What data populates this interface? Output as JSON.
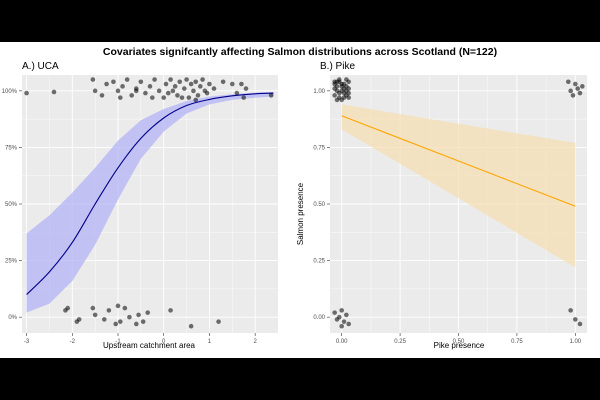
{
  "figure": {
    "title": "Covariates signifcantly affecting Salmon distributions across Scotland (N=122)"
  },
  "colors": {
    "panel_bg": "#ebebeb",
    "grid": "#ffffff",
    "points": "#000000",
    "uca_line": "#00008b",
    "uca_band": "#b3b3f5",
    "pike_line": "#ffa500",
    "pike_band": "#f5dfb3"
  },
  "chart_data": [
    {
      "type": "scatter",
      "panel_title": "A.) UCA",
      "xlabel": "Upstream catchment area",
      "ylabel": "",
      "xlim": [
        -3.1,
        2.5
      ],
      "ylim": [
        -0.07,
        1.07
      ],
      "xticks": [
        -3,
        -2,
        -1,
        0,
        1,
        2
      ],
      "xtick_labels": [
        "-3",
        "-2",
        "-1",
        "0",
        "1",
        "2"
      ],
      "yticks": [
        0,
        0.25,
        0.5,
        0.75,
        1
      ],
      "ytick_labels": [
        "0%",
        "25%",
        "50%",
        "75%",
        "100%"
      ],
      "fit": {
        "x": [
          -3,
          -2.5,
          -2,
          -1.5,
          -1,
          -0.5,
          0,
          0.5,
          1,
          1.5,
          2,
          2.4
        ],
        "y": [
          0.1,
          0.2,
          0.33,
          0.5,
          0.66,
          0.79,
          0.88,
          0.935,
          0.962,
          0.978,
          0.987,
          0.99
        ],
        "lower": [
          0.02,
          0.06,
          0.16,
          0.32,
          0.52,
          0.7,
          0.82,
          0.9,
          0.94,
          0.96,
          0.97,
          0.975
        ],
        "upper": [
          0.37,
          0.45,
          0.55,
          0.66,
          0.78,
          0.87,
          0.92,
          0.955,
          0.975,
          0.985,
          0.992,
          0.995
        ]
      },
      "points": [
        {
          "x": -3.0,
          "y": 0.99
        },
        {
          "x": -2.4,
          "y": 0.995
        },
        {
          "x": -1.55,
          "y": 1.05
        },
        {
          "x": -1.5,
          "y": 1.0
        },
        {
          "x": -1.25,
          "y": 1.03
        },
        {
          "x": -1.1,
          "y": 1.04
        },
        {
          "x": -1.0,
          "y": 1.0
        },
        {
          "x": -0.9,
          "y": 1.02
        },
        {
          "x": -0.8,
          "y": 1.05
        },
        {
          "x": -0.7,
          "y": 0.98
        },
        {
          "x": -0.6,
          "y": 1.01
        },
        {
          "x": -0.5,
          "y": 1.04
        },
        {
          "x": -0.4,
          "y": 0.99
        },
        {
          "x": -0.3,
          "y": 1.02
        },
        {
          "x": -0.2,
          "y": 1.05
        },
        {
          "x": -0.1,
          "y": 1.0
        },
        {
          "x": 0.0,
          "y": 0.97
        },
        {
          "x": 0.05,
          "y": 1.03
        },
        {
          "x": 0.15,
          "y": 1.05
        },
        {
          "x": 0.2,
          "y": 1.0
        },
        {
          "x": 0.3,
          "y": 0.98
        },
        {
          "x": 0.35,
          "y": 1.04
        },
        {
          "x": 0.45,
          "y": 1.01
        },
        {
          "x": 0.5,
          "y": 1.05
        },
        {
          "x": 0.55,
          "y": 0.97
        },
        {
          "x": 0.6,
          "y": 1.03
        },
        {
          "x": 0.65,
          "y": 1.0
        },
        {
          "x": 0.7,
          "y": 1.04
        },
        {
          "x": 0.75,
          "y": 0.98
        },
        {
          "x": 0.8,
          "y": 1.02
        },
        {
          "x": 0.85,
          "y": 1.05
        },
        {
          "x": 0.9,
          "y": 1.0
        },
        {
          "x": 0.95,
          "y": 0.99
        },
        {
          "x": 1.0,
          "y": 1.03
        },
        {
          "x": 1.1,
          "y": 1.01
        },
        {
          "x": 1.3,
          "y": 1.04
        },
        {
          "x": 1.5,
          "y": 1.03
        },
        {
          "x": 1.6,
          "y": 0.99
        },
        {
          "x": 1.7,
          "y": 1.03
        },
        {
          "x": 1.75,
          "y": 0.97
        },
        {
          "x": 1.8,
          "y": 1.01
        },
        {
          "x": 2.35,
          "y": 0.98
        },
        {
          "x": -0.6,
          "y": 1.0
        },
        {
          "x": -0.25,
          "y": 0.97
        },
        {
          "x": 0.1,
          "y": 0.99
        },
        {
          "x": 0.25,
          "y": 1.02
        },
        {
          "x": 0.4,
          "y": 0.97
        },
        {
          "x": 0.7,
          "y": 0.96
        },
        {
          "x": -1.35,
          "y": 0.98
        },
        {
          "x": -0.95,
          "y": 0.97
        },
        {
          "x": -2.15,
          "y": 0.03
        },
        {
          "x": -2.1,
          "y": 0.04
        },
        {
          "x": -1.9,
          "y": -0.02
        },
        {
          "x": -1.85,
          "y": -0.01
        },
        {
          "x": -1.55,
          "y": 0.04
        },
        {
          "x": -1.5,
          "y": 0.01
        },
        {
          "x": -1.3,
          "y": -0.01
        },
        {
          "x": -1.2,
          "y": 0.03
        },
        {
          "x": -1.0,
          "y": 0.05
        },
        {
          "x": -0.95,
          "y": -0.02
        },
        {
          "x": -0.85,
          "y": 0.04
        },
        {
          "x": -0.75,
          "y": 0.0
        },
        {
          "x": -0.6,
          "y": -0.03
        },
        {
          "x": -0.55,
          "y": 0.01
        },
        {
          "x": -0.35,
          "y": 0.02
        },
        {
          "x": 0.15,
          "y": 0.03
        },
        {
          "x": 0.6,
          "y": -0.04
        },
        {
          "x": 1.2,
          "y": -0.02
        },
        {
          "x": -1.05,
          "y": -0.03
        },
        {
          "x": -0.45,
          "y": -0.02
        }
      ]
    },
    {
      "type": "scatter",
      "panel_title": "B.) Pike",
      "xlabel": "Pike presence",
      "ylabel": "Salmon presence",
      "xlim": [
        -0.05,
        1.05
      ],
      "ylim": [
        -0.07,
        1.07
      ],
      "xticks": [
        0,
        0.25,
        0.5,
        0.75,
        1
      ],
      "xtick_labels": [
        "0.00",
        "0.25",
        "0.50",
        "0.75",
        "1.00"
      ],
      "yticks": [
        0,
        0.25,
        0.5,
        0.75,
        1
      ],
      "ytick_labels": [
        "0.00",
        "0.25",
        "0.50",
        "0.75",
        "1.00"
      ],
      "fit": {
        "x": [
          0,
          1
        ],
        "y": [
          0.89,
          0.49
        ],
        "lower": [
          0.83,
          0.22
        ],
        "upper": [
          0.94,
          0.77
        ]
      },
      "points": [
        {
          "x": -0.03,
          "y": 1.04
        },
        {
          "x": -0.02,
          "y": 1.0
        },
        {
          "x": -0.01,
          "y": 0.97
        },
        {
          "x": 0.0,
          "y": 1.03
        },
        {
          "x": 0.01,
          "y": 0.99
        },
        {
          "x": 0.02,
          "y": 1.05
        },
        {
          "x": 0.03,
          "y": 1.01
        },
        {
          "x": -0.03,
          "y": 0.98
        },
        {
          "x": -0.01,
          "y": 1.04
        },
        {
          "x": 0.0,
          "y": 0.96
        },
        {
          "x": 0.02,
          "y": 1.02
        },
        {
          "x": 0.03,
          "y": 0.97
        },
        {
          "x": -0.02,
          "y": 1.02
        },
        {
          "x": 0.01,
          "y": 1.03
        },
        {
          "x": -0.03,
          "y": 1.01
        },
        {
          "x": 0.02,
          "y": 0.98
        },
        {
          "x": 0.0,
          "y": 1.0
        },
        {
          "x": -0.01,
          "y": 1.05
        },
        {
          "x": 0.03,
          "y": 1.04
        },
        {
          "x": -0.02,
          "y": 0.96
        },
        {
          "x": 0.01,
          "y": 0.97
        },
        {
          "x": -0.03,
          "y": 1.03
        },
        {
          "x": 0.02,
          "y": 1.0
        },
        {
          "x": 0.0,
          "y": 1.02
        },
        {
          "x": -0.01,
          "y": 0.99
        },
        {
          "x": 0.03,
          "y": 0.99
        },
        {
          "x": -0.02,
          "y": 1.04
        },
        {
          "x": 0.01,
          "y": 1.01
        },
        {
          "x": 0.97,
          "y": 1.04
        },
        {
          "x": 0.98,
          "y": 1.0
        },
        {
          "x": 0.99,
          "y": 0.98
        },
        {
          "x": 1.0,
          "y": 1.03
        },
        {
          "x": 1.01,
          "y": 1.01
        },
        {
          "x": 1.02,
          "y": 0.99
        },
        {
          "x": 1.03,
          "y": 1.02
        },
        {
          "x": -0.03,
          "y": 0.02
        },
        {
          "x": -0.02,
          "y": -0.01
        },
        {
          "x": 0.0,
          "y": 0.03
        },
        {
          "x": 0.01,
          "y": -0.02
        },
        {
          "x": 0.02,
          "y": 0.01
        },
        {
          "x": -0.01,
          "y": 0.0
        },
        {
          "x": 0.03,
          "y": -0.03
        },
        {
          "x": 0.0,
          "y": -0.04
        },
        {
          "x": 0.98,
          "y": 0.03
        },
        {
          "x": 1.0,
          "y": -0.01
        },
        {
          "x": 1.02,
          "y": -0.03
        }
      ]
    }
  ]
}
